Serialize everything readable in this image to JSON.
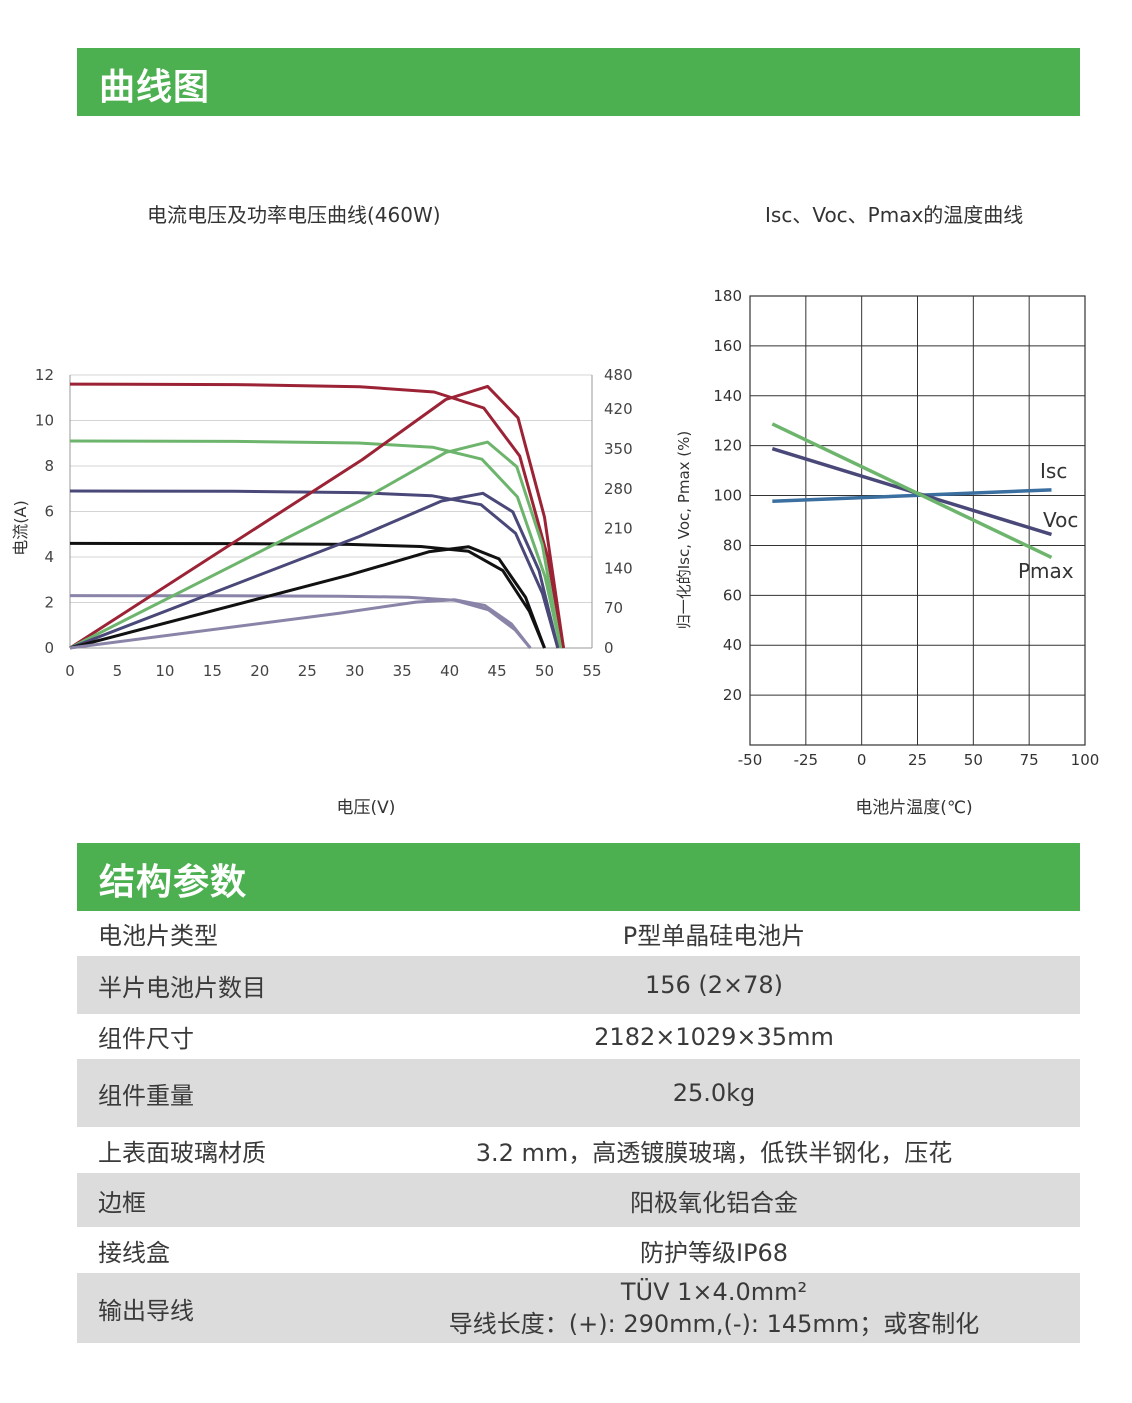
{
  "sections": {
    "curves_title": "曲线图",
    "structure_title": "结构参数"
  },
  "chart_data": [
    {
      "type": "line",
      "title": "电流电压及功率电压曲线(460W)",
      "xlabel": "电压(V)",
      "ylabel": "电流(A)",
      "xlim": [
        0,
        55
      ],
      "ylim": [
        0,
        12
      ],
      "y2lim": [
        0,
        480
      ],
      "x_ticks": [
        "0",
        "5",
        "10",
        "15",
        "20",
        "25",
        "30",
        "35",
        "40",
        "45",
        "50",
        "55"
      ],
      "y_ticks": [
        "0",
        "2",
        "4",
        "6",
        "8",
        "10",
        "12"
      ],
      "y2_ticks": [
        "0",
        "70",
        "140",
        "210",
        "280",
        "350",
        "420",
        "480"
      ],
      "grid": "horizontal",
      "colors": [
        "#9b2335",
        "#6db56d",
        "#4a4878",
        "#111111",
        "#8a84a8"
      ],
      "series": [
        {
          "kind": "current",
          "color_index": 0,
          "isc": 11.6,
          "voc": 52.0,
          "vmp": 43.6,
          "imp": 10.55
        },
        {
          "kind": "current",
          "color_index": 1,
          "isc": 9.1,
          "voc": 51.7,
          "vmp": 43.4,
          "imp": 8.3
        },
        {
          "kind": "current",
          "color_index": 2,
          "isc": 6.9,
          "voc": 51.4,
          "vmp": 43.3,
          "imp": 6.3
        },
        {
          "kind": "current",
          "color_index": 3,
          "isc": 4.6,
          "voc": 50.0,
          "vmp": 42.0,
          "imp": 4.25
        },
        {
          "kind": "current",
          "color_index": 4,
          "isc": 2.3,
          "voc": 48.5,
          "vmp": 40.5,
          "imp": 2.1
        },
        {
          "kind": "power",
          "color_index": 0,
          "pmax": 460,
          "vmp": 44.0,
          "voc": 52.0
        },
        {
          "kind": "power",
          "color_index": 1,
          "pmax": 362,
          "vmp": 44.0,
          "voc": 51.7
        },
        {
          "kind": "power",
          "color_index": 2,
          "pmax": 272,
          "vmp": 43.5,
          "voc": 51.4
        },
        {
          "kind": "power",
          "color_index": 3,
          "pmax": 178,
          "vmp": 42.0,
          "voc": 50.0
        },
        {
          "kind": "power",
          "color_index": 4,
          "pmax": 85,
          "vmp": 40.5,
          "voc": 48.5
        }
      ]
    },
    {
      "type": "line",
      "title": "Isc、Voc、Pmax的温度曲线",
      "xlabel": "电池片温度(℃)",
      "ylabel": "归一化的Isc, Voc, Pmax (%)",
      "xlim": [
        -50,
        100
      ],
      "ylim": [
        0,
        180
      ],
      "x_ticks": [
        "-50",
        "-25",
        "0",
        "25",
        "50",
        "75",
        "100"
      ],
      "y_ticks": [
        "20",
        "40",
        "60",
        "80",
        "100",
        "120",
        "140",
        "160",
        "180"
      ],
      "grid": "both",
      "series": [
        {
          "name": "Isc",
          "color": "#3a6fa0",
          "x": [
            -40,
            85
          ],
          "y": [
            97.7,
            102.3
          ]
        },
        {
          "name": "Voc",
          "color": "#4a4878",
          "x": [
            -40,
            85
          ],
          "y": [
            118.8,
            84.4
          ]
        },
        {
          "name": "Pmax",
          "color": "#6db56d",
          "x": [
            -40,
            85
          ],
          "y": [
            128.7,
            75.2
          ]
        }
      ]
    }
  ],
  "specs": [
    {
      "label": "电池片类型",
      "value": "P型单晶硅电池片"
    },
    {
      "label": "半片电池片数目",
      "value": "156 (2×78)"
    },
    {
      "label": "组件尺寸",
      "value": "2182×1029×35mm"
    },
    {
      "label": "组件重量",
      "value": "25.0kg"
    },
    {
      "label": "上表面玻璃材质",
      "value": "3.2 mm，高透镀膜玻璃，低铁半钢化，压花"
    },
    {
      "label": "边框",
      "value": "阳极氧化铝合金"
    },
    {
      "label": "接线盒",
      "value": "防护等级IP68"
    },
    {
      "label": "输出导线",
      "value": "TÜV 1×4.0mm²",
      "value2": "导线长度：(+): 290mm,(-): 145mm；或客制化"
    }
  ]
}
